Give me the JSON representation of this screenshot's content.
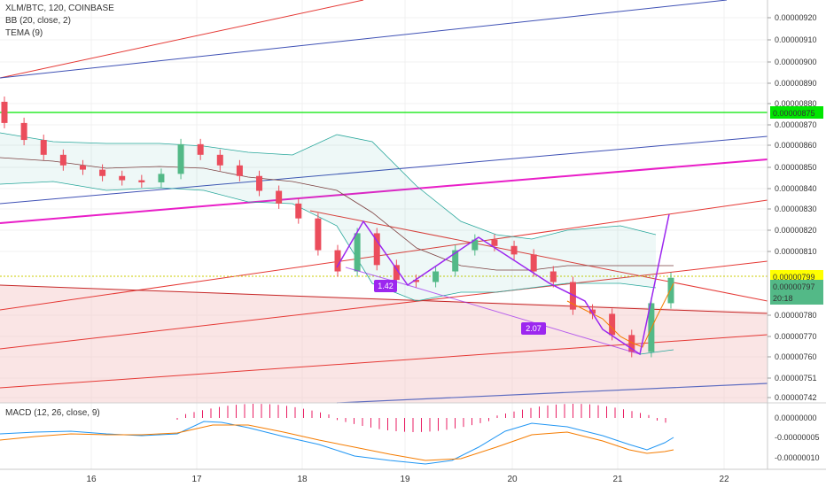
{
  "legend": {
    "symbol": "XLM/BTC, 120, COINBASE",
    "bb": "BB (20, close, 2)",
    "tema": "TEMA (9)",
    "macd": "MACD (12, 26, close, 9)"
  },
  "price_axis_ticks": [
    "0.00000920",
    "0.00000910",
    "0.00000900",
    "0.00000890",
    "0.00000880",
    "0.00000870",
    "0.00000860",
    "0.00000850",
    "0.00000840",
    "0.00000830",
    "0.00000820",
    "0.00000810",
    "0.00000780",
    "0.00000770",
    "0.00000760",
    "0.00000751",
    "0.00000742"
  ],
  "macd_axis_ticks": [
    "0.00000000",
    "-0.00000005",
    "-0.00000010"
  ],
  "time_ticks": [
    "16",
    "17",
    "18",
    "19",
    "20",
    "21",
    "22"
  ],
  "markers": {
    "green_level": "0.00000875",
    "yellow_level": "0.00000799",
    "last_price": "0.00000797",
    "countdown": "20:18",
    "pattern_ratio_1": "1.42",
    "pattern_ratio_2": "2.07"
  },
  "colors": {
    "up": "#53b987",
    "down": "#eb4d5c",
    "bb": "#26a69a",
    "ma": "#7b3f3f",
    "tema": "#f57c00",
    "red_line": "#e53935",
    "blue_line": "#3f51b5",
    "magenta_line": "#e91ec8",
    "green_level": "#00e600",
    "yellow_level": "#e6e600",
    "pattern": "#9c27ef",
    "macd_line": "#2196f3",
    "signal_line": "#f57c00",
    "hist": "#e91e63"
  },
  "chart_data": {
    "type": "candlestick",
    "x": [
      "16",
      "17",
      "18",
      "19",
      "20",
      "21",
      "22"
    ],
    "ylim": [
      7.38e-06,
      9.28e-06
    ],
    "candles_close_approx": [
      8.7e-06,
      8.62e-06,
      8.55e-06,
      8.5e-06,
      8.48e-06,
      8.45e-06,
      8.43e-06,
      8.42e-06,
      8.46e-06,
      8.6e-06,
      8.55e-06,
      8.5e-06,
      8.45e-06,
      8.38e-06,
      8.32e-06,
      8.25e-06,
      8.1e-06,
      8e-06,
      8.18e-06,
      8.03e-06,
      7.96e-06,
      7.95e-06,
      8e-06,
      8.1e-06,
      8.15e-06,
      8.12e-06,
      8.08e-06,
      8e-06,
      7.95e-06,
      7.82e-06,
      7.8e-06,
      7.7e-06,
      7.62e-06,
      7.85e-06,
      7.97e-06
    ],
    "levels": {
      "green": 8.75e-06,
      "yellow": 7.99e-06,
      "last": 7.97e-06
    },
    "pattern_ratios": [
      1.42,
      2.07
    ],
    "macd": {
      "ylim": [
        -1.2e-07,
        3e-08
      ]
    }
  }
}
